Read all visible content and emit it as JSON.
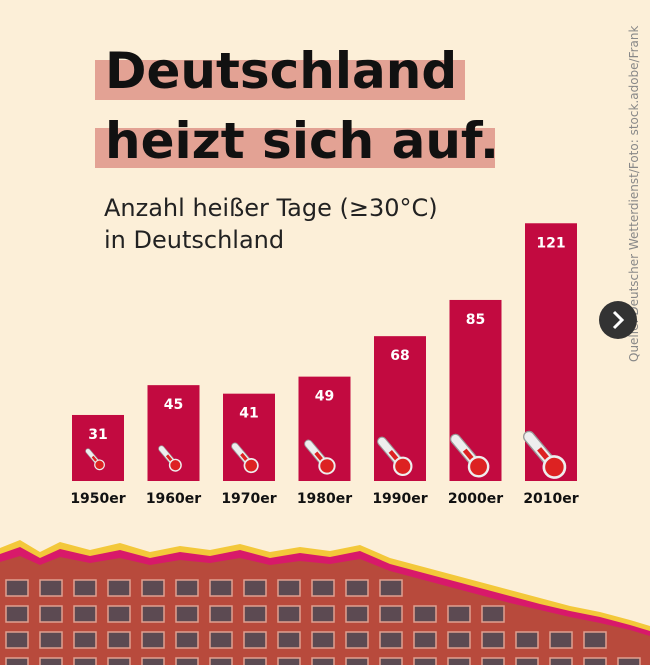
{
  "chart_data": {
    "type": "bar",
    "title": [
      "Deutschland",
      "heizt sich auf."
    ],
    "subtitle": [
      "Anzahl heißer Tage (≥30°C)",
      "in Deutschland"
    ],
    "source": "Quelle: Deutscher Wetterdienst/Foto: stock.adobe/Frank",
    "categories": [
      "1950er",
      "1960er",
      "1970er",
      "1980er",
      "1990er",
      "2000er",
      "2010er"
    ],
    "values": [
      31,
      45,
      41,
      49,
      68,
      85,
      121
    ],
    "color": "#c20a40"
  }
}
